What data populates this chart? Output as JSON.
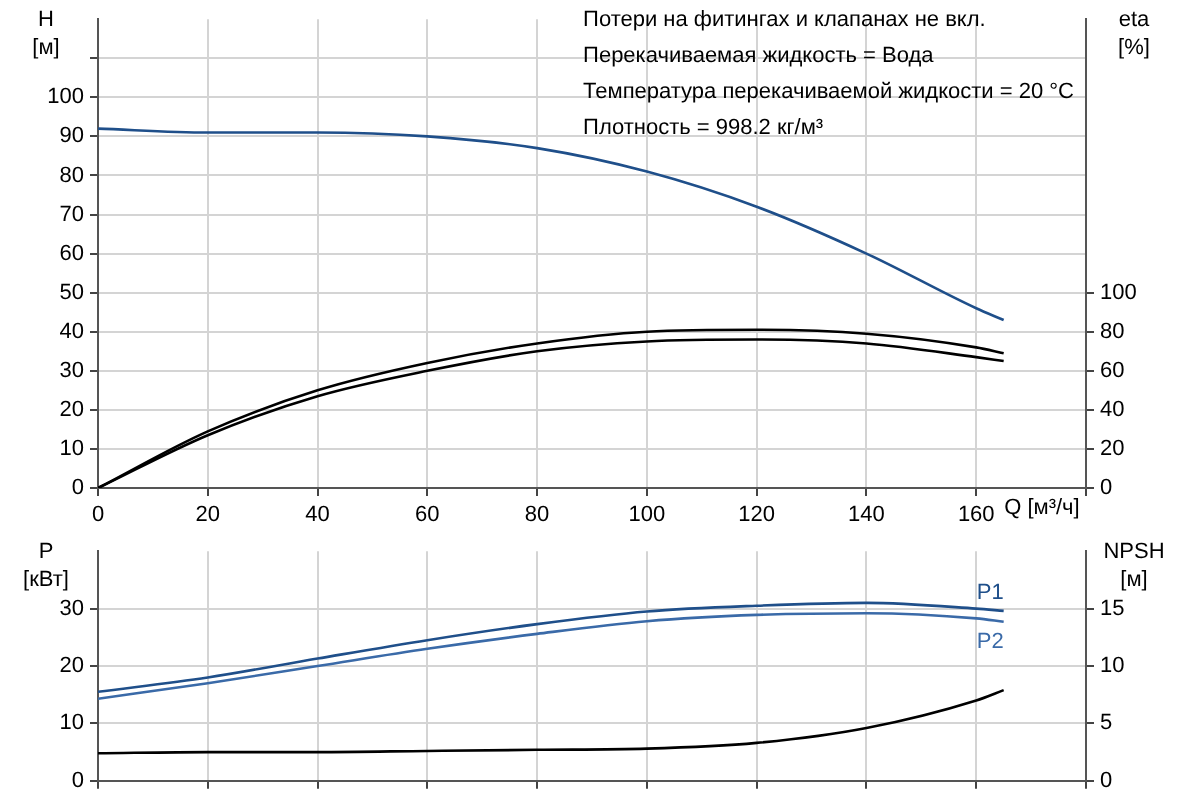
{
  "chart_data": [
    {
      "type": "line",
      "xlabel": "Q [м³/ч]",
      "ylabel": "H [м]",
      "y2label": "eta [%]",
      "annotations": [
        "Потери на фитингах и клапанах не вкл.",
        "Перекачиваемая жидкость = Вода",
        "Температура перекачиваемой жидкости = 20 °C",
        "Плотность = 998.2 кг/м³"
      ],
      "x": [
        0,
        20,
        40,
        60,
        80,
        100,
        120,
        140,
        160,
        165
      ],
      "series": [
        {
          "color": "#1f4f8a",
          "values": [
            92,
            91,
            91,
            90,
            87,
            81,
            72,
            60,
            46,
            43
          ]
        },
        {
          "color": "#000000",
          "axis": "y2",
          "values": [
            0,
            29,
            50,
            64,
            74,
            80,
            81,
            79,
            72,
            69
          ]
        },
        {
          "color": "#000000",
          "axis": "y2",
          "values": [
            0,
            27,
            47,
            60,
            70,
            75,
            76,
            74,
            67,
            65
          ]
        }
      ],
      "xlim": [
        0,
        180
      ],
      "xticks": [
        0,
        20,
        40,
        60,
        80,
        100,
        120,
        140,
        160,
        {
          "value": 180,
          "label": null
        }
      ],
      "ylim": [
        0,
        120
      ],
      "yticks": [
        0,
        10,
        20,
        30,
        40,
        50,
        60,
        70,
        80,
        90,
        100,
        {
          "value": 110,
          "label": null
        }
      ],
      "y2lim": [
        0,
        240
      ],
      "y2ticks": [
        0,
        20,
        40,
        60,
        80,
        100
      ],
      "grid": true,
      "legend": false,
      "marker": "none",
      "line_style": "solid"
    },
    {
      "type": "line",
      "ylabel": "P [кВт]",
      "y2label": "NPSH [м]",
      "x": [
        0,
        20,
        40,
        60,
        80,
        100,
        120,
        140,
        160,
        165
      ],
      "series": [
        {
          "name": "P1",
          "color": "#1f4f8a",
          "values": [
            15.5,
            18,
            21.3,
            24.5,
            27.3,
            29.5,
            30.5,
            31,
            30,
            29.6
          ]
        },
        {
          "name": "P2",
          "color": "#3a6aa8",
          "values": [
            14.3,
            17,
            20,
            23,
            25.6,
            27.8,
            28.9,
            29.2,
            28.3,
            27.7
          ]
        },
        {
          "color": "#000000",
          "axis": "y2",
          "values": [
            2.4,
            2.5,
            2.5,
            2.6,
            2.7,
            2.8,
            3.3,
            4.6,
            7,
            7.9
          ]
        }
      ],
      "xlim": [
        0,
        180
      ],
      "xticks": [
        0,
        20,
        40,
        60,
        80,
        100,
        120,
        140,
        160,
        {
          "value": 180,
          "label": null
        }
      ],
      "ylim": [
        0,
        40
      ],
      "yticks": [
        0,
        10,
        20,
        30
      ],
      "y2lim": [
        0,
        20
      ],
      "y2ticks": [
        0,
        5,
        10,
        15
      ],
      "tick_labels": "y",
      "grid": true,
      "legend": false,
      "marker": "none",
      "line_style": "solid"
    }
  ]
}
